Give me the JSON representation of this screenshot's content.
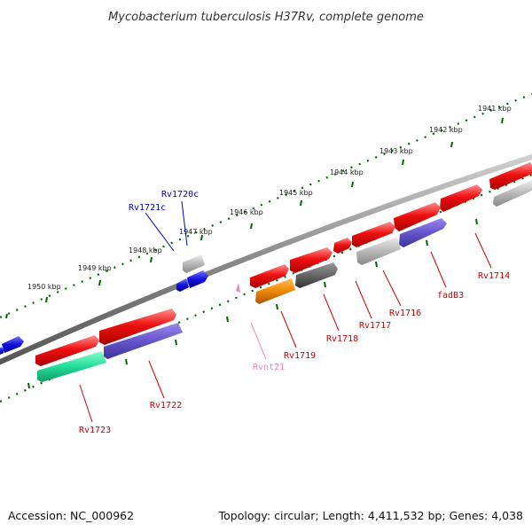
{
  "title": "Mycobacterium tuberculosis H37Rv, complete genome",
  "footer": {
    "accession": "Accession: NC_000962",
    "summary": "Topology: circular; Length: 4,411,532 bp; Genes: 4,038"
  },
  "scale_labels": [
    "1941 kbp",
    "1942 kbp",
    "1943 kbp",
    "1944 kbp",
    "1945 kbp",
    "1946 kbp",
    "1947 kbp",
    "1948 kbp",
    "1949 kbp",
    "1950 kbp"
  ],
  "genes": {
    "Rv1720c": "Rv1720c",
    "Rv1721c": "Rv1721c",
    "Rv1714": "Rv1714",
    "fadB3": "fadB3",
    "Rv1716": "Rv1716",
    "Rv1717": "Rv1717",
    "Rv1718": "Rv1718",
    "Rv1719": "Rv1719",
    "Rvnt21": "Rvnt21",
    "Rv1722": "Rv1722",
    "Rv1723": "Rv1723"
  },
  "colors": {
    "forward_gene": "#ee1111",
    "reverse_gene": "#1111dd",
    "pseudo_gene": "#b8b8b8",
    "dark_gene": "#666666",
    "purple_gene": "#6655cc",
    "orange_gene": "#ee8800",
    "teal_gene": "#22dd99",
    "rna_gene": "#ee88bb",
    "backbone": "#888888",
    "tick": "#006600",
    "label_red": "#cc0000",
    "label_blue": "#0000cc",
    "label_pink": "#ee88bb"
  }
}
